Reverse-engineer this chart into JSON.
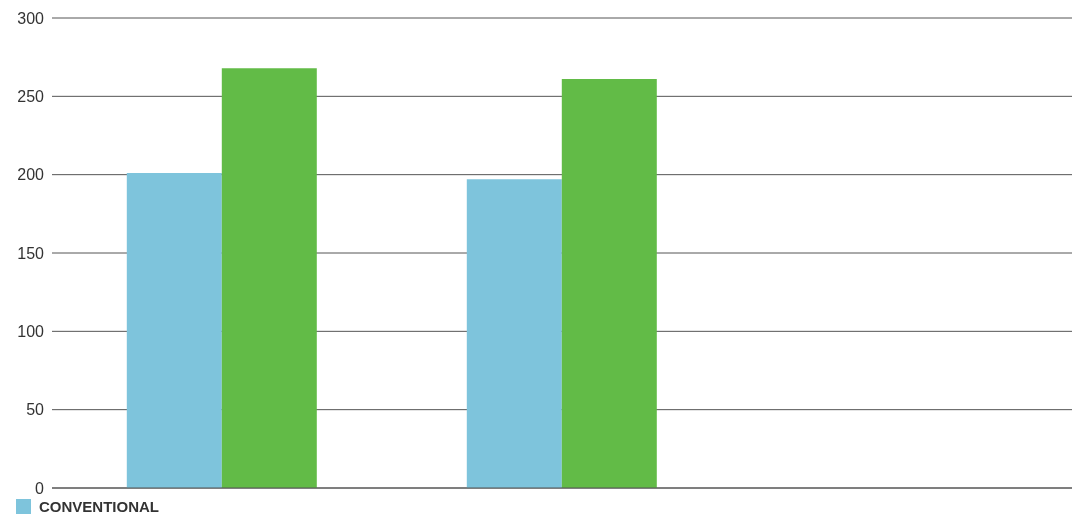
{
  "chart_data": {
    "type": "bar",
    "categories": [
      null,
      null,
      null
    ],
    "series": [
      {
        "name": "CONVENTIONAL",
        "color": "#7ec4dc",
        "values": [
          201,
          197,
          null
        ]
      },
      {
        "color": "#62bb47",
        "values": [
          268,
          261,
          null
        ]
      }
    ],
    "ylim": [
      0,
      300
    ],
    "yticks": [
      0,
      50,
      100,
      150,
      200,
      250,
      300
    ],
    "grid": "y",
    "legend": "bottom left"
  }
}
